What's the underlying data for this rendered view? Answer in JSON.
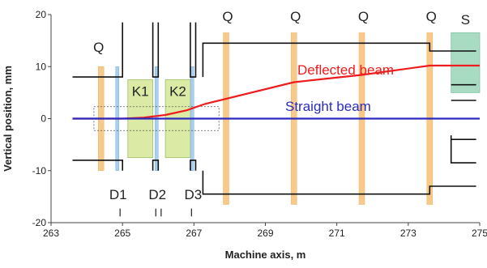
{
  "chart_data": {
    "type": "line",
    "xlabel": "Machine axis, m",
    "ylabel": "Vertical position, mm",
    "xlim": [
      263,
      275
    ],
    "ylim": [
      -20,
      20
    ],
    "xticks": [
      "263",
      "265",
      "267",
      "269",
      "271",
      "273",
      "275"
    ],
    "yticks": [
      "20",
      "10",
      "0",
      "-10",
      "-20"
    ],
    "series": [
      {
        "name": "Deflected beam",
        "color": "#ee1c1c",
        "x": [
          263.6,
          265.0,
          265.6,
          266.2,
          266.8,
          267.3,
          269.8,
          271.7,
          273.6,
          274.3,
          275.0
        ],
        "y": [
          0,
          0,
          0.2,
          0.7,
          1.6,
          2.8,
          7.0,
          8.4,
          10.2,
          10.2,
          10.2
        ]
      },
      {
        "name": "Straight beam",
        "color": "#2b2bbd",
        "x": [
          263.6,
          275.0
        ],
        "y": [
          0,
          0
        ]
      }
    ],
    "quadrupoles": {
      "label": "Q",
      "color": "#f7c98a",
      "positions": [
        264.4,
        267.9,
        269.8,
        271.7,
        273.6
      ],
      "extents": [
        [
          -10,
          10
        ],
        [
          -16.5,
          16.5
        ],
        [
          -16.5,
          16.5
        ],
        [
          -16.5,
          16.5
        ],
        [
          -16.5,
          16.5
        ]
      ]
    },
    "kickers": [
      {
        "label": "K1",
        "x0": 265.15,
        "x1": 265.85,
        "y0": -7.5,
        "y1": 7.5,
        "color": "#dbeaa4"
      },
      {
        "label": "K2",
        "x0": 266.2,
        "x1": 266.9,
        "y0": -7.5,
        "y1": 7.5,
        "color": "#dbeaa4"
      }
    ],
    "septum": {
      "label": "S",
      "x0": 274.2,
      "x1": 275.0,
      "y0": 5,
      "y1": 16.5,
      "color": "#a9dbc3"
    },
    "diagnostics": {
      "labels": [
        "D1",
        "D2",
        "D3"
      ],
      "positions": [
        264.9,
        266.0,
        267.0
      ],
      "color": "#a8cfee"
    },
    "aperture_color": "#111111"
  }
}
